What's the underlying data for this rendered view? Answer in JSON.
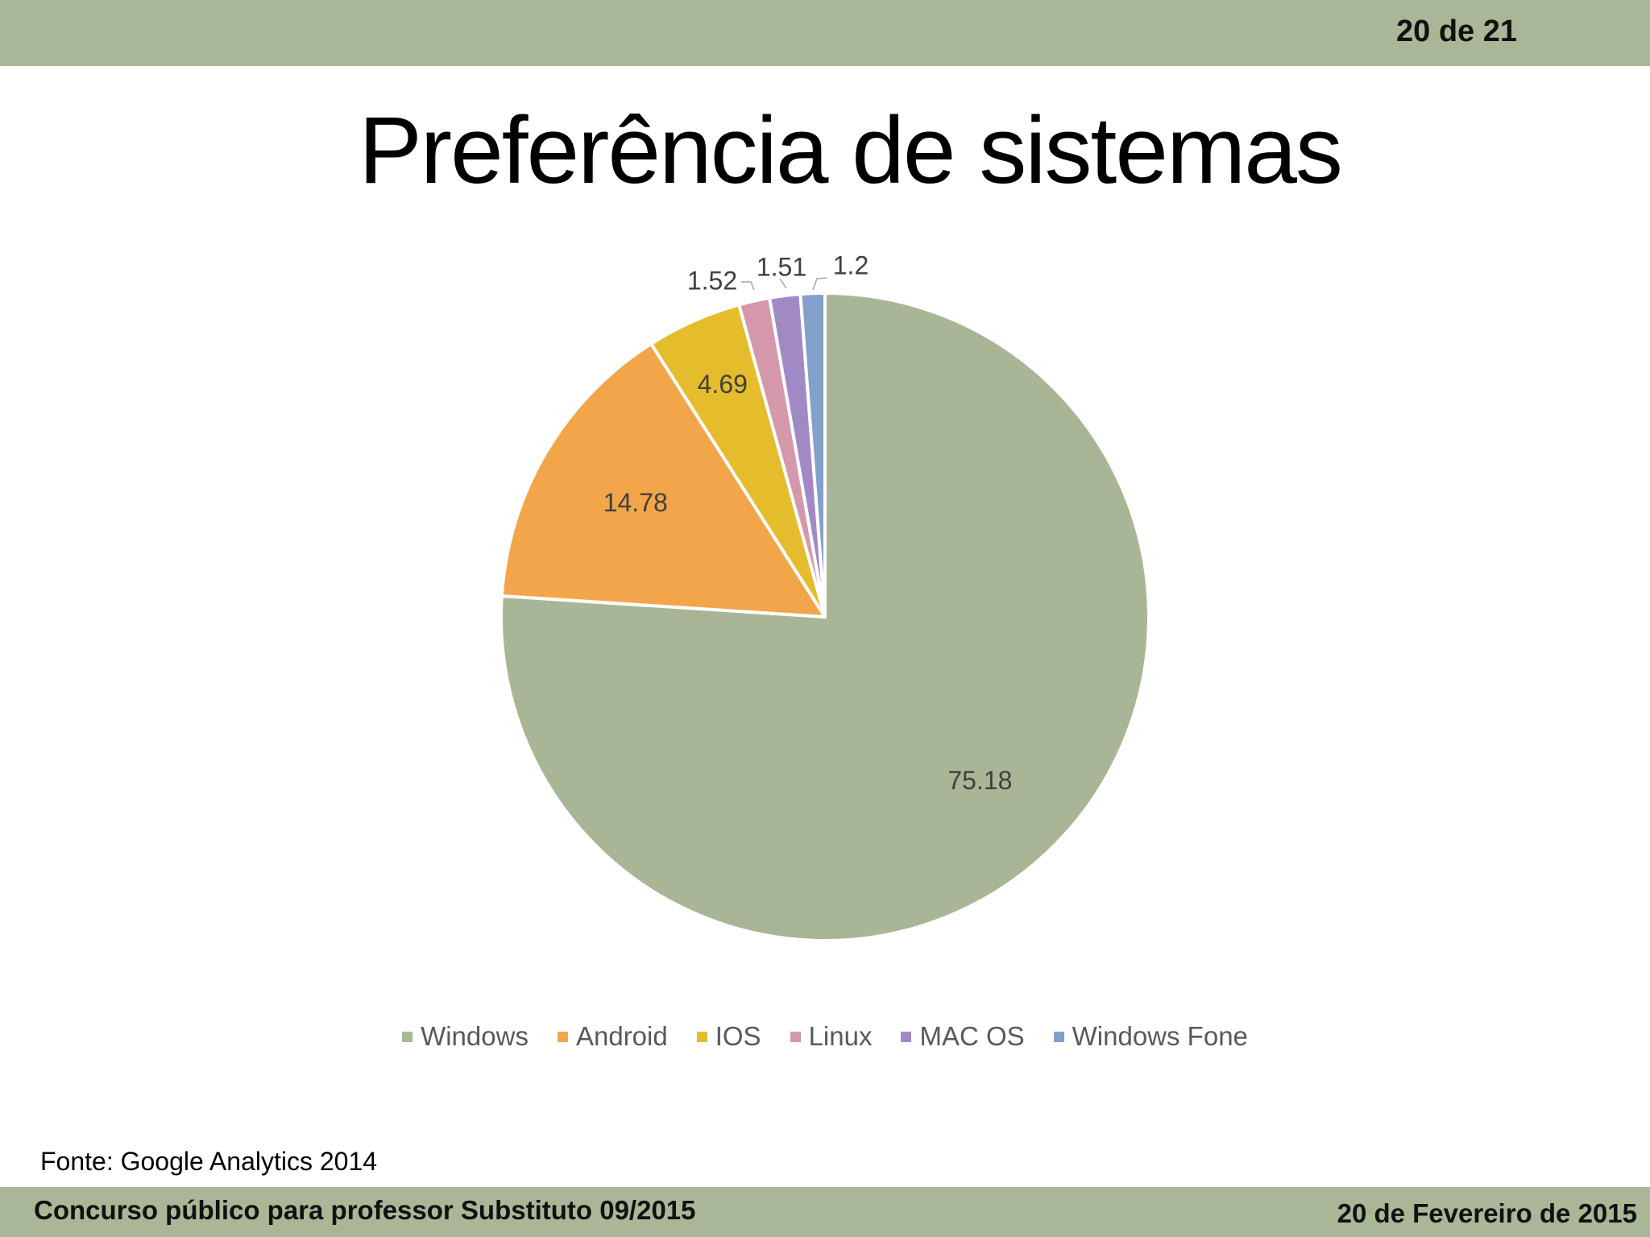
{
  "header": {
    "page_counter": "20 de 21"
  },
  "slide": {
    "title": "Preferência de sistemas",
    "source": "Fonte: Google Analytics 2014"
  },
  "footer": {
    "left": "Concurso público para professor Substituto 09/2015",
    "right": "20 de Fevereiro de 2015"
  },
  "colors": {
    "bar": "#a9b796"
  },
  "chart_data": {
    "type": "pie",
    "title": "",
    "categories": [
      "Windows",
      "Android",
      "IOS",
      "Linux",
      "MAC OS",
      "Windows Fone"
    ],
    "values": [
      75.18,
      14.78,
      4.69,
      1.52,
      1.51,
      1.2
    ],
    "labels": [
      "75.18",
      "14.78",
      "4.69",
      "1.52",
      "1.51",
      "1.2"
    ],
    "colors": [
      "#a8b696",
      "#f3a54a",
      "#e5bd2c",
      "#d598aa",
      "#a189c6",
      "#839fcb"
    ],
    "legend_position": "bottom"
  }
}
